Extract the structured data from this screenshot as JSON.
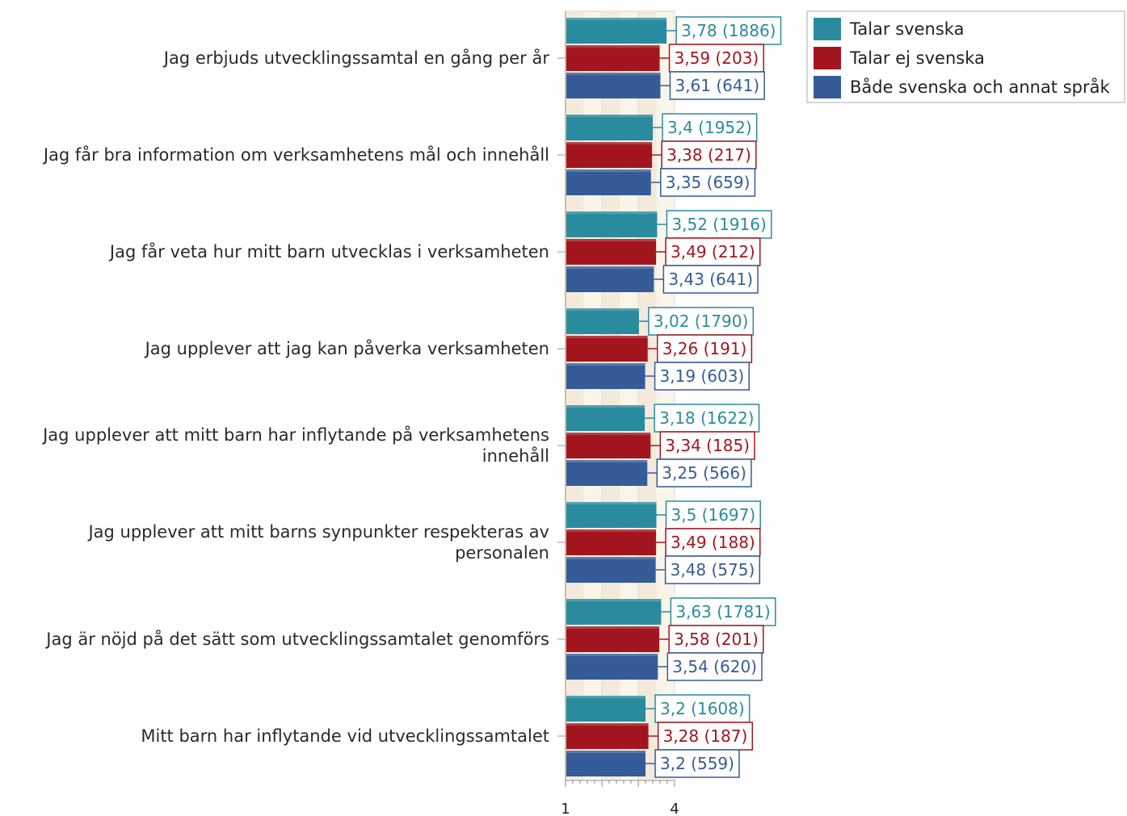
{
  "chart_data": {
    "type": "bar",
    "orientation": "horizontal",
    "categories": [
      [
        "Jag erbjuds utvecklingssamtal en gång per år"
      ],
      [
        "Jag får bra information om verksamhetens mål och innehåll"
      ],
      [
        "Jag får veta hur mitt barn utvecklas i verksamheten"
      ],
      [
        "Jag upplever att jag kan påverka verksamheten"
      ],
      [
        "Jag upplever att mitt barn har inflytande på verksamhetens",
        "innehåll"
      ],
      [
        "Jag upplever att mitt barns synpunkter respekteras av",
        "personalen"
      ],
      [
        "Jag är nöjd på det sätt som utvecklingssamtalet genomförs"
      ],
      [
        "Mitt barn har inflytande vid utvecklingssamtalet"
      ]
    ],
    "series": [
      {
        "name": "Talar svenska",
        "color": "#2a8b9e",
        "values": [
          3.78,
          3.4,
          3.52,
          3.02,
          3.18,
          3.5,
          3.63,
          3.2
        ],
        "labels": [
          "3,78 (1886)",
          "3,4 (1952)",
          "3,52 (1916)",
          "3,02 (1790)",
          "3,18 (1622)",
          "3,5 (1697)",
          "3,63 (1781)",
          "3,2 (1608)"
        ]
      },
      {
        "name": "Talar ej svenska",
        "color": "#a3161f",
        "values": [
          3.59,
          3.38,
          3.49,
          3.26,
          3.34,
          3.49,
          3.58,
          3.28
        ],
        "labels": [
          "3,59 (203)",
          "3,38 (217)",
          "3,49 (212)",
          "3,26 (191)",
          "3,34 (185)",
          "3,49 (188)",
          "3,58 (201)",
          "3,28 (187)"
        ]
      },
      {
        "name": "Både svenska och annat språk",
        "color": "#355c98",
        "values": [
          3.61,
          3.35,
          3.43,
          3.19,
          3.25,
          3.48,
          3.54,
          3.2
        ],
        "labels": [
          "3,61 (641)",
          "3,35 (659)",
          "3,43 (641)",
          "3,19 (603)",
          "3,25 (566)",
          "3,48 (575)",
          "3,54 (620)",
          "3,2 (559)"
        ]
      }
    ],
    "xlim": [
      1,
      4
    ],
    "xticks": [
      "1",
      "4"
    ],
    "grid": true,
    "legend_position": "top-right",
    "title": "",
    "xlabel": "",
    "ylabel": ""
  }
}
